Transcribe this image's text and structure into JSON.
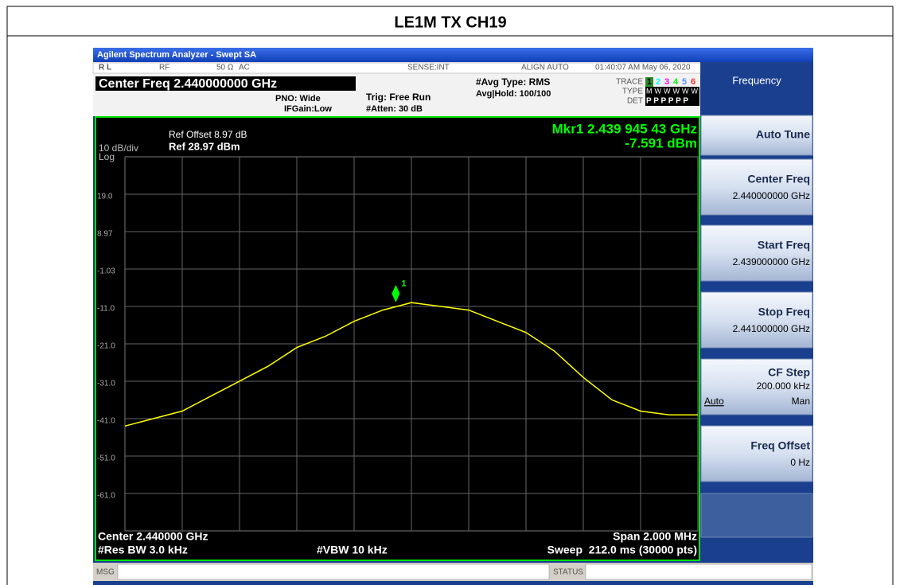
{
  "header": {
    "title": "LE1M TX CH19"
  },
  "window": {
    "title": "Agilent Spectrum Analyzer - Swept SA"
  },
  "status_bar": {
    "rl": "R L",
    "rf": "RF",
    "impedance": "50 Ω",
    "coupling": "AC",
    "sense": "SENSE:INT",
    "align": "ALIGN AUTO",
    "datetime": "01:40:07 AM May 06, 2020"
  },
  "settings": {
    "center_freq": "Center Freq 2.440000000 GHz",
    "pno": "PNO: Wide",
    "ifgain": "IFGain:Low",
    "trig": "Trig: Free Run",
    "atten": "#Atten: 30 dB",
    "avg_type": "#Avg Type: RMS",
    "avg_hold": "Avg|Hold: 100/100",
    "trace_label": "TRACE",
    "trace_numbers": [
      "1",
      "2",
      "3",
      "4",
      "5",
      "6"
    ],
    "type_label": "TYPE",
    "type_value": "MWWWWW",
    "det_label": "DET",
    "det_value": "P P P P P P"
  },
  "plot": {
    "ref_offset": "Ref Offset 8.97 dB",
    "ref_level": "Ref 28.97 dBm",
    "scale": "10 dB/div",
    "scale_type": "Log",
    "ylim": [
      -71.03,
      28.97
    ],
    "yticks": [
      {
        "value": 18.97,
        "label": "19.0"
      },
      8.97,
      -1.03,
      {
        "value": -11.03,
        "label": "-11.0"
      },
      {
        "value": -21.03,
        "label": "-21.0"
      },
      {
        "value": -31.03,
        "label": "-31.0"
      },
      {
        "value": -41.03,
        "label": "-41.0"
      },
      {
        "value": -51.03,
        "label": "-51.0"
      },
      {
        "value": -61.03,
        "label": "-61.0"
      }
    ],
    "xlim": [
      2.439,
      2.441
    ],
    "trace": {
      "color": "#ffff00",
      "x": [
        2.439,
        2.4391,
        2.4392,
        2.4393,
        2.4394,
        2.4395,
        2.4396,
        2.4397,
        2.4398,
        2.4399,
        2.44,
        2.4401,
        2.4402,
        2.4403,
        2.4404,
        2.4405,
        2.4406,
        2.4407,
        2.4408,
        2.4409,
        2.441
      ],
      "values": [
        -43,
        -41,
        -39,
        -35,
        -31,
        -27,
        -22,
        -19,
        -15,
        -12,
        -10,
        -11,
        -12,
        -15,
        -18,
        -23,
        -30,
        -36,
        -39,
        -40,
        -40
      ]
    },
    "marker": {
      "number": "1",
      "label": "Mkr1 2.439 945 43 GHz",
      "amplitude": "-7.591 dBm",
      "x": 2.43994543,
      "value": -7.591,
      "color": "#00ff00"
    },
    "footer": {
      "center": "Center 2.440000 GHz",
      "res_bw": "#Res BW 3.0 kHz",
      "vbw": "#VBW 10 kHz",
      "span": "Span 2.000 MHz",
      "sweep": "Sweep  212.0 ms (30000 pts)"
    }
  },
  "softkeys": {
    "menu": "Frequency",
    "keys": [
      {
        "label": "Auto Tune"
      },
      {
        "label": "Center Freq",
        "value": "2.440000000 GHz"
      },
      {
        "label": "Start Freq",
        "value": "2.439000000 GHz"
      },
      {
        "label": "Stop Freq",
        "value": "2.441000000 GHz"
      },
      {
        "label": "CF Step",
        "value": "200.000 kHz",
        "options": [
          "Auto",
          "Man"
        ]
      },
      {
        "label": "Freq Offset",
        "value": "0 Hz"
      }
    ]
  },
  "message_bar": {
    "msg": "MSG",
    "status": "STATUS"
  }
}
